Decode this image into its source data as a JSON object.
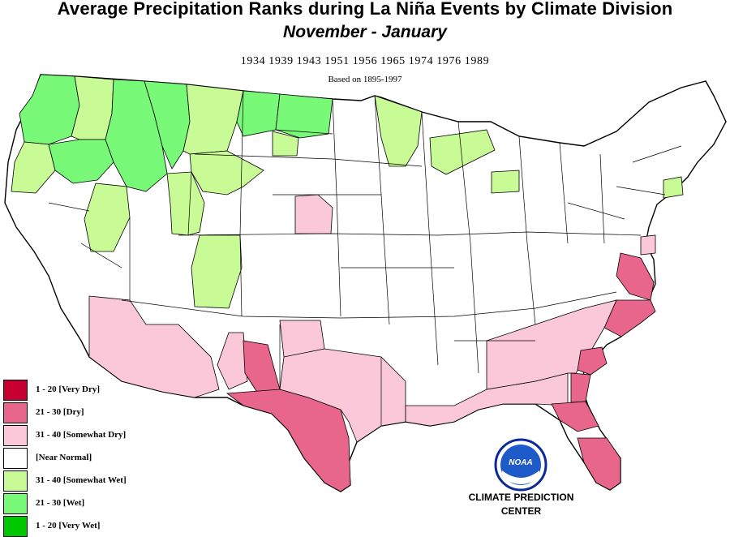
{
  "title": "Average Precipitation Ranks during La  Niña Events by Climate Division",
  "subtitle": "November  -  January",
  "years_line": "1934 1939 1943 1951 1956 1965 1974 1976 1989",
  "basis_line": "Based on 1895-1997",
  "legend": [
    {
      "label": "1 - 20 [Very Dry]",
      "color": "#c80032"
    },
    {
      "label": "21 - 30 [Dry]",
      "color": "#e8668c"
    },
    {
      "label": "31 - 40 [Somewhat Dry]",
      "color": "#fac8d8"
    },
    {
      "label": "[Near Normal]",
      "color": "#ffffff"
    },
    {
      "label": "31 - 40 [Somewhat Wet]",
      "color": "#c8fa96"
    },
    {
      "label": "21 - 30 [Wet]",
      "color": "#78fa78"
    },
    {
      "label": "1 - 20 [Very Wet]",
      "color": "#00c800"
    }
  ],
  "colors": {
    "very_dry": "#c80032",
    "dry": "#e8668c",
    "somewhat_dry": "#fac8d8",
    "near_normal": "#ffffff",
    "somewhat_wet": "#c8fa96",
    "wet": "#78fa78",
    "very_wet": "#00c800",
    "outline": "#000000"
  },
  "logo": {
    "text": "NOAA",
    "fill": "#1e5ac8",
    "ring": "#0a2a9a"
  },
  "agency": {
    "line1": "CLIMATE PREDICTION",
    "line2": "CENTER"
  }
}
